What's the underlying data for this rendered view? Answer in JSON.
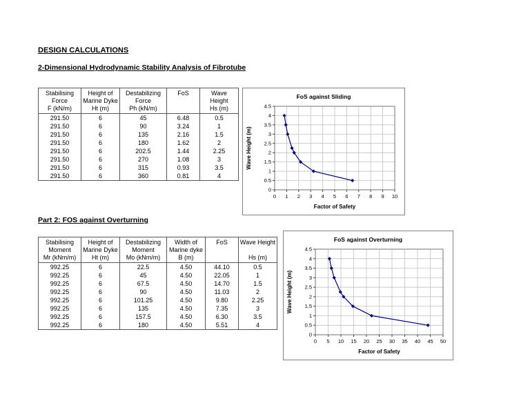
{
  "headings": {
    "title": "DESIGN CALCULATIONS",
    "subtitle": "2-Dimensional Hydrodynamic Stability Analysis of Fibrotube",
    "part2": "Part 2: FOS against Overturning"
  },
  "table1": {
    "headers": [
      {
        "lines": [
          "Stabilising",
          "Force",
          "F (kN/m)"
        ]
      },
      {
        "lines": [
          "Height of",
          "Marine Dyke",
          "Ht (m)"
        ]
      },
      {
        "lines": [
          "Destabilizing",
          "Force",
          "Ph (kN/m)"
        ]
      },
      {
        "lines": [
          "FoS"
        ]
      },
      {
        "lines": [
          "Wave",
          "Height",
          "Hs (m)"
        ]
      }
    ],
    "rows": [
      [
        "291.50",
        "6",
        "45",
        "6.48",
        "0.5"
      ],
      [
        "291.50",
        "6",
        "90",
        "3.24",
        "1"
      ],
      [
        "291.50",
        "6",
        "135",
        "2.16",
        "1.5"
      ],
      [
        "291.50",
        "6",
        "180",
        "1.62",
        "2"
      ],
      [
        "291.50",
        "6",
        "202.5",
        "1.44",
        "2.25"
      ],
      [
        "291.50",
        "6",
        "270",
        "1.08",
        "3"
      ],
      [
        "291.50",
        "6",
        "315",
        "0.93",
        "3.5"
      ],
      [
        "291.50",
        "6",
        "360",
        "0.81",
        "4"
      ]
    ]
  },
  "table2": {
    "headers": [
      {
        "lines": [
          "Stabilising",
          "Moment",
          "Mr (kNm/m)"
        ]
      },
      {
        "lines": [
          "Height of",
          "Marine Dyke",
          "Ht (m)"
        ]
      },
      {
        "lines": [
          "Destabilizing",
          "Moment",
          "Mo (kNm/m)"
        ]
      },
      {
        "lines": [
          "Width of",
          "Marine dyke",
          "B (m)"
        ]
      },
      {
        "lines": [
          "FoS"
        ]
      },
      {
        "lines": [
          "Wave Height",
          "",
          "Hs (m)"
        ]
      }
    ],
    "rows": [
      [
        "992.25",
        "6",
        "22.5",
        "4.50",
        "44.10",
        "0.5"
      ],
      [
        "992.25",
        "6",
        "45",
        "4.50",
        "22.05",
        "1"
      ],
      [
        "992.25",
        "6",
        "67.5",
        "4.50",
        "14.70",
        "1.5"
      ],
      [
        "992.25",
        "6",
        "90",
        "4.50",
        "11.03",
        "2"
      ],
      [
        "992.25",
        "6",
        "101.25",
        "4.50",
        "9.80",
        "2.25"
      ],
      [
        "992.25",
        "6",
        "135",
        "4.50",
        "7.35",
        "3"
      ],
      [
        "992.25",
        "6",
        "157.5",
        "4.50",
        "6.30",
        "3.5"
      ],
      [
        "992.25",
        "6",
        "180",
        "4.50",
        "5.51",
        "4"
      ]
    ]
  },
  "chart_data": [
    {
      "type": "scatter",
      "title": "FoS against Sliding",
      "xlabel": "Factor of Safety",
      "ylabel": "Wave Height (m)",
      "xlim": [
        0,
        10
      ],
      "xstep": 1,
      "ylim": [
        0,
        4.5
      ],
      "ystep": 0.5,
      "grid": true,
      "legend": "none",
      "line_color": "#000080",
      "points": [
        [
          6.48,
          0.5
        ],
        [
          3.24,
          1
        ],
        [
          2.16,
          1.5
        ],
        [
          1.62,
          2
        ],
        [
          1.44,
          2.25
        ],
        [
          1.08,
          3
        ],
        [
          0.93,
          3.5
        ],
        [
          0.81,
          4
        ]
      ]
    },
    {
      "type": "scatter",
      "title": "FoS against Overturning",
      "xlabel": "Factor of Safety",
      "ylabel": "Wave Height (m)",
      "xlim": [
        0,
        50
      ],
      "xstep": 5,
      "ylim": [
        0,
        4.5
      ],
      "ystep": 0.5,
      "grid": true,
      "legend": "none",
      "line_color": "#000080",
      "points": [
        [
          44.1,
          0.5
        ],
        [
          22.05,
          1
        ],
        [
          14.7,
          1.5
        ],
        [
          11.03,
          2
        ],
        [
          9.8,
          2.25
        ],
        [
          7.35,
          3
        ],
        [
          6.3,
          3.5
        ],
        [
          5.51,
          4
        ]
      ]
    }
  ]
}
